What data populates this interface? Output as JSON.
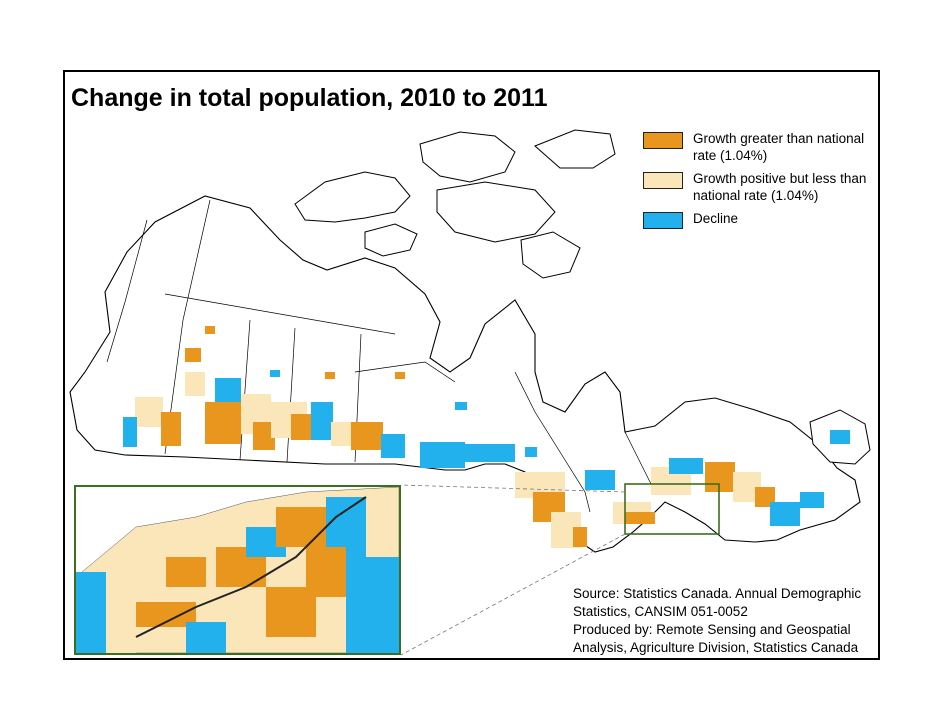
{
  "map": {
    "title": "Change in total population, 2010 to 2011",
    "legend": [
      {
        "label": "Growth greater than national rate (1.04%)",
        "color": "#e8961e"
      },
      {
        "label": "Growth positive but less than national rate (1.04%)",
        "color": "#fae6b9"
      },
      {
        "label": "Decline",
        "color": "#22b1ec"
      }
    ],
    "source_text": "Source: Statistics Canada. Annual Demographic Statistics, CANSIM 051-0052",
    "produced_text": "Produced by: Remote Sensing and Geospatial Analysis, Agriculture Division, Statistics Canada",
    "colors": {
      "above": "#e8961e",
      "below": "#fae6b9",
      "decline": "#22b1ec",
      "inset_border": "#3d6e1f"
    }
  }
}
